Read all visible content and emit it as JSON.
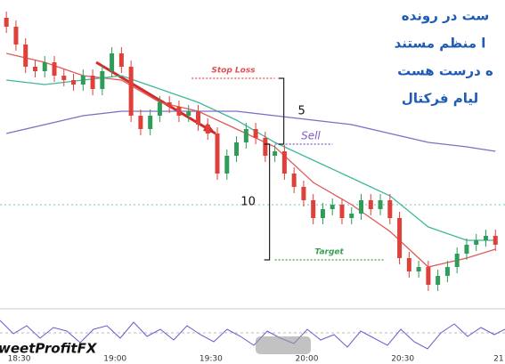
{
  "chart_data": {
    "type": "candlestick",
    "watermark": "weetProfitFX",
    "notes": [
      "ست در رونده",
      "ا منظم مستند",
      "ه درست هست",
      "لیام فرکتال"
    ],
    "x": [
      1106,
      1109,
      1112,
      1115,
      1118,
      1121,
      1124,
      1127,
      1130,
      1133,
      1136,
      1139,
      1142,
      1145,
      1148,
      1151,
      1154,
      1157,
      1160,
      1163,
      1166,
      1169,
      1172,
      1175,
      1178,
      1181,
      1184,
      1187,
      1190,
      1193,
      1196,
      1199,
      1202,
      1205,
      1208,
      1211,
      1214,
      1217,
      1220,
      1223,
      1226,
      1229,
      1232,
      1235,
      1238,
      1241,
      1244,
      1247,
      1250,
      1253,
      1256,
      1259
    ],
    "open": [
      330,
      320,
      300,
      275,
      270,
      280,
      265,
      260,
      255,
      265,
      250,
      270,
      290,
      275,
      220,
      205,
      220,
      235,
      230,
      220,
      225,
      210,
      200,
      155,
      175,
      190,
      205,
      195,
      175,
      180,
      155,
      140,
      125,
      105,
      115,
      120,
      105,
      110,
      125,
      115,
      125,
      105,
      60,
      45,
      50,
      30,
      40,
      50,
      65,
      75,
      80,
      85
    ],
    "high": [
      337,
      327,
      307,
      282,
      287,
      287,
      272,
      267,
      272,
      272,
      277,
      297,
      297,
      282,
      227,
      227,
      242,
      242,
      237,
      232,
      232,
      217,
      207,
      182,
      197,
      212,
      212,
      202,
      187,
      187,
      162,
      147,
      132,
      122,
      127,
      127,
      117,
      132,
      132,
      132,
      132,
      112,
      67,
      57,
      57,
      47,
      57,
      72,
      82,
      87,
      92,
      92
    ],
    "low": [
      313,
      293,
      268,
      263,
      263,
      258,
      253,
      248,
      248,
      243,
      243,
      263,
      268,
      213,
      198,
      198,
      213,
      223,
      213,
      213,
      203,
      193,
      148,
      148,
      168,
      183,
      188,
      168,
      168,
      148,
      133,
      118,
      98,
      98,
      108,
      98,
      98,
      103,
      108,
      108,
      98,
      53,
      38,
      38,
      23,
      23,
      33,
      43,
      58,
      68,
      73,
      68
    ],
    "close": [
      320,
      300,
      275,
      270,
      280,
      265,
      260,
      255,
      265,
      250,
      270,
      290,
      275,
      220,
      205,
      220,
      235,
      230,
      220,
      225,
      210,
      200,
      155,
      175,
      190,
      205,
      195,
      175,
      180,
      155,
      140,
      125,
      105,
      115,
      120,
      105,
      110,
      125,
      115,
      125,
      105,
      60,
      45,
      50,
      30,
      40,
      50,
      65,
      75,
      80,
      85,
      75
    ],
    "up_color": "#2e9d5a",
    "down_color": "#e0403a",
    "lines": [
      {
        "color": "#e05a5a",
        "x": [
          1106,
          1118,
          1130,
          1142,
          1154,
          1166,
          1178,
          1190,
          1202,
          1214,
          1226,
          1238,
          1250,
          1259
        ],
        "values": [
          290,
          280,
          265,
          260,
          235,
          225,
          205,
          185,
          145,
          120,
          90,
          50,
          60,
          70
        ]
      },
      {
        "color": "#3fb89a",
        "x": [
          1106,
          1118,
          1130,
          1142,
          1154,
          1166,
          1178,
          1190,
          1202,
          1214,
          1226,
          1238,
          1250,
          1259
        ],
        "values": [
          260,
          255,
          260,
          265,
          250,
          235,
          215,
          190,
          170,
          150,
          130,
          95,
          80,
          80
        ]
      },
      {
        "color": "#7b6fc4",
        "x": [
          1106,
          1118,
          1130,
          1142,
          1154,
          1166,
          1178,
          1190,
          1202,
          1214,
          1226,
          1238,
          1250,
          1259
        ],
        "values": [
          200,
          210,
          220,
          225,
          225,
          225,
          225,
          220,
          215,
          210,
          200,
          190,
          185,
          180
        ]
      }
    ],
    "levels": [
      {
        "label": "Stop Loss",
        "value": 262,
        "color": "#e05050",
        "from": 1164,
        "to": 1190
      },
      {
        "label": "Sell",
        "value": 188,
        "color": "#7d5cc0",
        "from": 1190,
        "to": 1208
      },
      {
        "label": "Target",
        "value": 58,
        "color": "#3aa055",
        "from": 1190,
        "to": 1224
      }
    ],
    "support": {
      "value": 120,
      "color": "#6fc6c0"
    },
    "brackets": [
      "5",
      "10"
    ],
    "xlim": [
      1104,
      1262
    ],
    "ylim": [
      5,
      350
    ],
    "xticks": [
      {
        "value": 1110,
        "label": "18:30"
      },
      {
        "value": 1140,
        "label": "19:00"
      },
      {
        "value": 1170,
        "label": "19:30"
      },
      {
        "value": 1200,
        "label": "20:00"
      },
      {
        "value": 1230,
        "label": "20:30"
      },
      {
        "value": 1260,
        "label": "21"
      }
    ]
  }
}
